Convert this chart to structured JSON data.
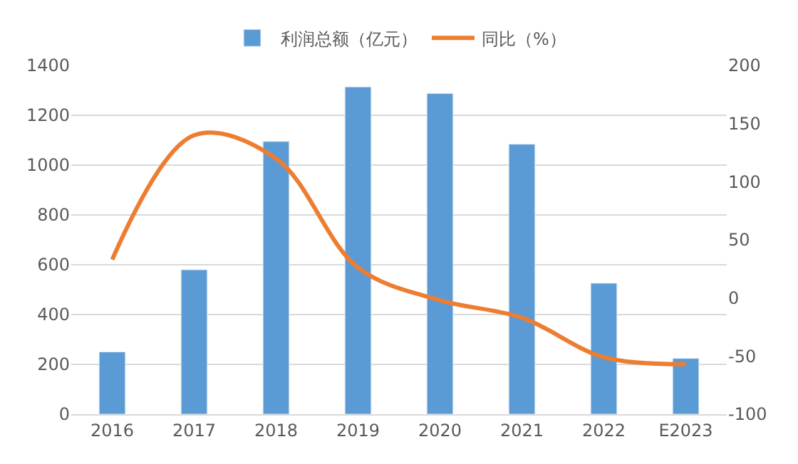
{
  "chart_data": {
    "type": "bar",
    "categories": [
      "2016",
      "2017",
      "2018",
      "2019",
      "2020",
      "2021",
      "2022",
      "E2023"
    ],
    "series": [
      {
        "name": "利润总额（亿元）",
        "color": "#5b9bd5",
        "values": [
          250,
          580,
          1095,
          1314,
          1288,
          1084,
          526,
          224
        ]
      },
      {
        "name": "同比（%）",
        "type": "line",
        "axis": "y2",
        "color": "#ed7d31",
        "marker": "none",
        "values": [
          33,
          140,
          120,
          26,
          -2,
          -17,
          -51,
          -57
        ]
      }
    ],
    "ylim": [
      0,
      1400
    ],
    "yticks": [
      0,
      200,
      400,
      600,
      800,
      1000,
      1200,
      1400
    ],
    "y2lim": [
      -100,
      200
    ],
    "y2ticks": [
      -100,
      -50,
      0,
      50,
      100,
      150,
      200
    ],
    "grid": "y",
    "legend": "top"
  }
}
